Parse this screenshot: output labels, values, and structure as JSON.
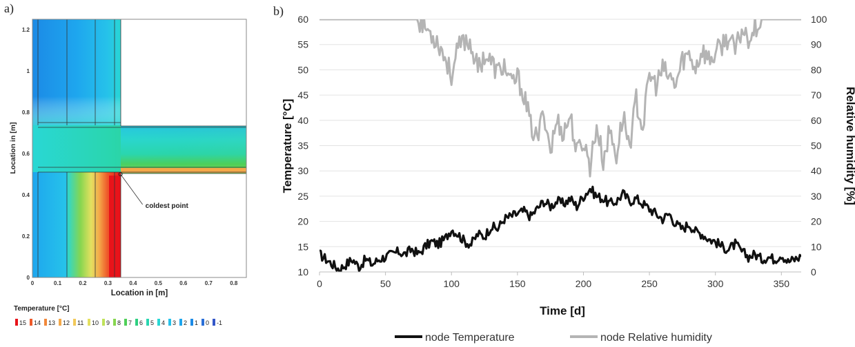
{
  "panels": {
    "a_label": "a)",
    "b_label": "b)"
  },
  "chart_data": [
    {
      "type": "heatmap",
      "xlabel": "Location in [m]",
      "ylabel": "Location in [m]",
      "xlim": [
        0,
        0.85
      ],
      "ylim": [
        0,
        1.25
      ],
      "xticks": [
        "0",
        "0.1",
        "0.2",
        "0.3",
        "0.4",
        "0.5",
        "0.6",
        "0.7",
        "0.8"
      ],
      "xtick_values": [
        0,
        0.1,
        0.2,
        0.3,
        0.4,
        0.5,
        0.6,
        0.7,
        0.8
      ],
      "yticks": [
        "0",
        "0.2",
        "0.4",
        "0.6",
        "0.8",
        "1",
        "1.2"
      ],
      "ytick_values": [
        0,
        0.2,
        0.4,
        0.6,
        0.8,
        1.0,
        1.2
      ],
      "annotation": {
        "text": "coldest point",
        "x": 0.35,
        "y": 0.5
      },
      "colorbar": {
        "title": "Temperature [°C]",
        "entries": [
          {
            "label": "15",
            "color": "#e8131a"
          },
          {
            "label": "14",
            "color": "#ee5a2a"
          },
          {
            "label": "13",
            "color": "#f2883a"
          },
          {
            "label": "12",
            "color": "#f4a94a"
          },
          {
            "label": "11",
            "color": "#f2c95a"
          },
          {
            "label": "10",
            "color": "#e4e060"
          },
          {
            "label": "9",
            "color": "#bfe25a"
          },
          {
            "label": "8",
            "color": "#86d650"
          },
          {
            "label": "7",
            "color": "#4fcf58"
          },
          {
            "label": "6",
            "color": "#2fcf80"
          },
          {
            "label": "5",
            "color": "#2ad6b0"
          },
          {
            "label": "4",
            "color": "#29d7d4"
          },
          {
            "label": "3",
            "color": "#26c2ea"
          },
          {
            "label": "2",
            "color": "#1ea6ee"
          },
          {
            "label": "1",
            "color": "#1c8ae6"
          },
          {
            "label": "0",
            "color": "#2a6fd8"
          },
          {
            "label": "-1",
            "color": "#3457c8"
          }
        ]
      }
    },
    {
      "type": "line",
      "xlabel": "Time [d]",
      "ylabel": "Temperature [°C]",
      "y2label": "Relative humidity [%]",
      "xlim": [
        0,
        365
      ],
      "ylim": [
        10,
        60
      ],
      "y2lim": [
        0,
        100
      ],
      "xticks": [
        0,
        50,
        100,
        150,
        200,
        250,
        300,
        350
      ],
      "yticks": [
        10,
        15,
        20,
        25,
        30,
        35,
        40,
        45,
        50,
        55,
        60
      ],
      "y2ticks": [
        0,
        10,
        20,
        30,
        40,
        50,
        60,
        70,
        80,
        90,
        100
      ],
      "grid": true,
      "legend_position": "bottom",
      "series": [
        {
          "name": "node Temperature",
          "color": "#111111",
          "axis": "left",
          "x": [
            0,
            5,
            10,
            15,
            20,
            25,
            30,
            35,
            40,
            45,
            50,
            55,
            60,
            65,
            70,
            75,
            80,
            85,
            90,
            95,
            100,
            105,
            110,
            115,
            120,
            125,
            130,
            135,
            140,
            145,
            150,
            155,
            160,
            165,
            170,
            175,
            180,
            185,
            190,
            195,
            200,
            205,
            210,
            215,
            220,
            225,
            230,
            235,
            240,
            245,
            250,
            255,
            260,
            265,
            270,
            275,
            280,
            285,
            290,
            295,
            300,
            305,
            310,
            315,
            320,
            325,
            330,
            335,
            340,
            345,
            350,
            355,
            360,
            365
          ],
          "y": [
            13.5,
            12.5,
            11.5,
            10.5,
            11.5,
            12.5,
            11.0,
            12.5,
            11.5,
            12.5,
            13.0,
            13.5,
            14.0,
            13.5,
            14.5,
            13.5,
            15.0,
            16.0,
            15.5,
            16.5,
            18.5,
            17.5,
            16.0,
            15.5,
            17.5,
            17.0,
            19.0,
            18.5,
            20.5,
            21.0,
            21.5,
            22.0,
            21.0,
            22.5,
            24.0,
            23.0,
            24.0,
            23.5,
            24.5,
            23.0,
            25.0,
            26.5,
            25.0,
            24.5,
            23.5,
            24.0,
            25.5,
            24.0,
            24.5,
            23.5,
            22.5,
            21.5,
            20.5,
            21.5,
            19.5,
            18.5,
            19.5,
            18.0,
            17.5,
            16.5,
            16.0,
            15.0,
            14.5,
            15.5,
            14.0,
            13.0,
            13.5,
            12.5,
            13.0,
            12.5,
            13.5,
            12.0,
            12.5,
            13.0
          ]
        },
        {
          "name": "node Relative humidity",
          "color": "#b4b4b4",
          "axis": "right",
          "x": [
            0,
            60,
            75,
            80,
            85,
            90,
            95,
            100,
            105,
            110,
            115,
            120,
            125,
            130,
            135,
            140,
            145,
            150,
            155,
            160,
            165,
            170,
            175,
            180,
            185,
            190,
            195,
            200,
            205,
            210,
            215,
            220,
            225,
            230,
            235,
            240,
            245,
            250,
            255,
            260,
            265,
            270,
            275,
            280,
            285,
            290,
            295,
            300,
            305,
            310,
            315,
            320,
            325,
            330,
            335,
            365
          ],
          "y": [
            100,
            100,
            100,
            97,
            94,
            91,
            85,
            78,
            88,
            92,
            90,
            80,
            86,
            83,
            79,
            82,
            74,
            77,
            70,
            58,
            52,
            64,
            48,
            60,
            55,
            62,
            47,
            52,
            42,
            58,
            44,
            56,
            46,
            62,
            50,
            68,
            57,
            78,
            74,
            80,
            77,
            74,
            84,
            86,
            81,
            88,
            84,
            86,
            90,
            93,
            87,
            96,
            93,
            97,
            100,
            100
          ]
        }
      ]
    }
  ]
}
